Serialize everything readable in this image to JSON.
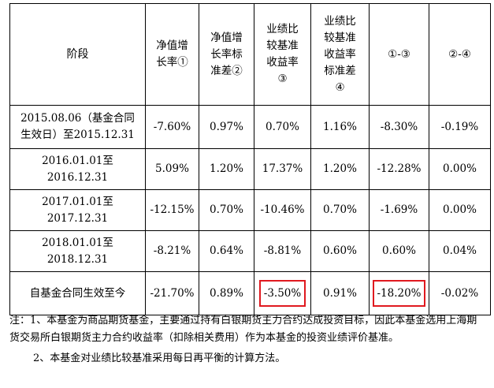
{
  "table": {
    "headers": [
      [
        "阶段"
      ],
      [
        "净值增",
        "长率①"
      ],
      [
        "净值增",
        "长率标",
        "准差②"
      ],
      [
        "业绩比",
        "较基准",
        "收益率",
        "③"
      ],
      [
        "业绩比",
        "较基准",
        "收益率",
        "标准差",
        "④"
      ],
      [
        "①-③"
      ],
      [
        "②-④"
      ]
    ],
    "rows": [
      {
        "stage": [
          "2015.08.06（基金合同",
          "生效日）至2015.12.31"
        ],
        "values": [
          "-7.60%",
          "0.97%",
          "0.70%",
          "1.16%",
          "-8.30%",
          "-0.19%"
        ]
      },
      {
        "stage": [
          "2016.01.01至",
          "2016.12.31"
        ],
        "values": [
          "5.09%",
          "1.20%",
          "17.37%",
          "1.20%",
          "-12.28%",
          "0.00%"
        ]
      },
      {
        "stage": [
          "2017.01.01至",
          "2017.12.31"
        ],
        "values": [
          "-12.15%",
          "0.70%",
          "-10.46%",
          "0.70%",
          "-1.69%",
          "0.00%"
        ]
      },
      {
        "stage": [
          "2018.01.01至",
          "2018.12.31"
        ],
        "values": [
          "-8.21%",
          "0.64%",
          "-8.81%",
          "0.60%",
          "0.60%",
          "0.04%"
        ]
      },
      {
        "stage": [
          "自基金合同生效至今"
        ],
        "values": [
          "-21.70%",
          "0.89%",
          "-3.50%",
          "0.91%",
          "-18.20%",
          "-0.02%"
        ]
      }
    ],
    "highlight_color": "#e0191f"
  },
  "notes": {
    "line1": "注：1、本基金为商品期货基金，主要通过持有白银期货主力合约达成投资目标，因此本基金选用上海期货交易所白银期货主力合约收益率（扣除相关费用）作为本基金的投资业绩评价基准。",
    "line2": "2、本基金对业绩比较基准采用每日再平衡的计算方法。"
  }
}
